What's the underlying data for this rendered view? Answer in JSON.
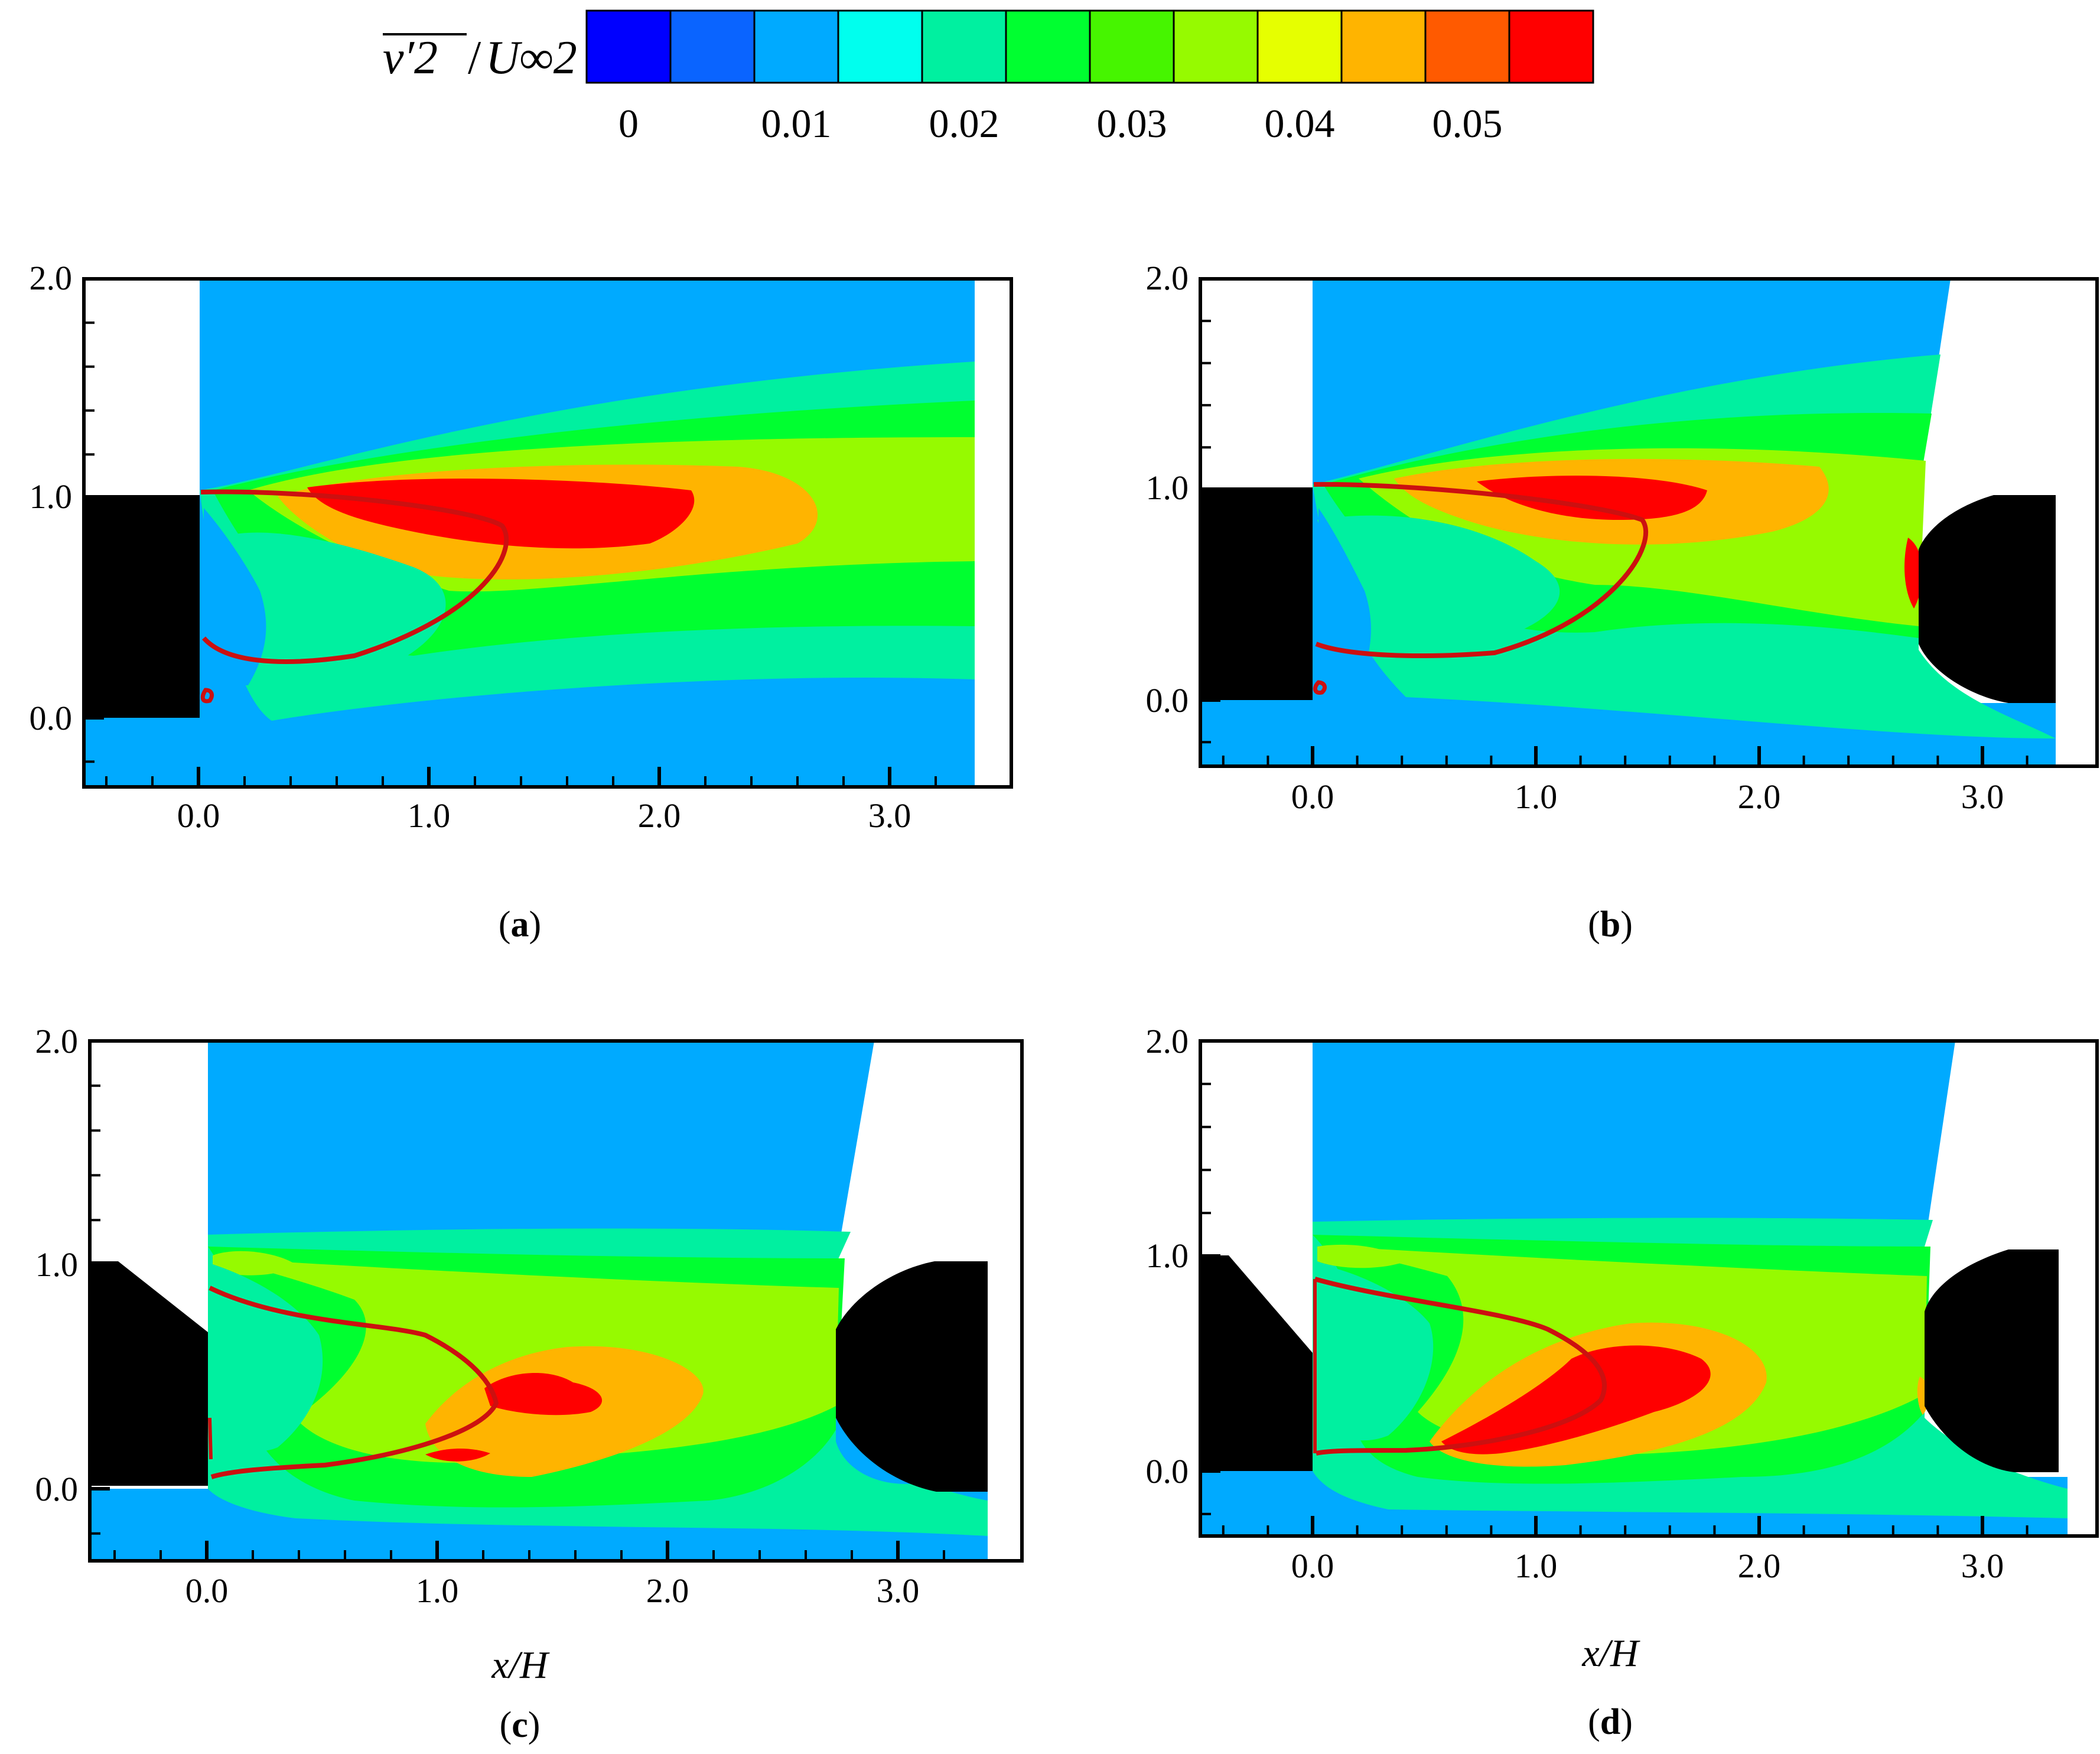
{
  "colorbar": {
    "title_main": "v′2",
    "title_sep": "/",
    "title_denom": "U∞2",
    "levels": [
      0,
      0.005,
      0.01,
      0.015,
      0.02,
      0.025,
      0.03,
      0.035,
      0.04,
      0.045,
      0.05,
      0.055
    ],
    "colors": [
      "#0000ff",
      "#0a64ff",
      "#00aaff",
      "#00ffee",
      "#00f0a0",
      "#00ff30",
      "#46f500",
      "#96fa00",
      "#e6ff00",
      "#ffb400",
      "#ff5a00",
      "#ff0000"
    ],
    "tick_labels": [
      "0",
      "0.01",
      "0.02",
      "0.03",
      "0.04",
      "0.05"
    ]
  },
  "chart_data": [
    {
      "type": "heatmap",
      "panel": "a",
      "caption_prefix": "(",
      "caption_letter": "a",
      "caption_suffix": ")",
      "xlabel": "",
      "ylabel": "",
      "x_ticks": [
        "0.0",
        "1.0",
        "2.0",
        "3.0"
      ],
      "y_ticks": [
        "0.0",
        "1.0",
        "2.0"
      ],
      "xlim": [
        -0.5,
        3.5
      ],
      "ylim": [
        -0.25,
        2.0
      ],
      "field_peak_level": 0.05,
      "peak_location": [
        1.5,
        0.85
      ]
    },
    {
      "type": "heatmap",
      "panel": "b",
      "caption_prefix": "(",
      "caption_letter": "b",
      "caption_suffix": ")",
      "xlabel": "",
      "ylabel": "",
      "x_ticks": [
        "0.0",
        "1.0",
        "2.0",
        "3.0"
      ],
      "y_ticks": [
        "0.0",
        "1.0",
        "2.0"
      ],
      "xlim": [
        -0.5,
        3.5
      ],
      "ylim": [
        -0.25,
        2.0
      ],
      "field_peak_level": 0.05,
      "peak_location": [
        1.45,
        0.95
      ]
    },
    {
      "type": "heatmap",
      "panel": "c",
      "caption_prefix": "(",
      "caption_letter": "c",
      "caption_suffix": ")",
      "xlabel": "x/H",
      "ylabel": "",
      "x_ticks": [
        "0.0",
        "1.0",
        "2.0",
        "3.0"
      ],
      "y_ticks": [
        "0.0",
        "1.0",
        "2.0"
      ],
      "xlim": [
        -0.5,
        3.5
      ],
      "ylim": [
        -0.25,
        2.0
      ],
      "field_peak_level": 0.05,
      "peak_location": [
        1.4,
        0.45
      ]
    },
    {
      "type": "heatmap",
      "panel": "d",
      "caption_prefix": "(",
      "caption_letter": "d",
      "caption_suffix": ")",
      "xlabel": "x/H",
      "ylabel": "",
      "x_ticks": [
        "0.0",
        "1.0",
        "2.0",
        "3.0"
      ],
      "y_ticks": [
        "0.0",
        "1.0",
        "2.0"
      ],
      "xlim": [
        -0.5,
        3.5
      ],
      "ylim": [
        -0.25,
        2.0
      ],
      "field_peak_level": 0.05,
      "peak_location": [
        1.4,
        0.45
      ]
    }
  ]
}
